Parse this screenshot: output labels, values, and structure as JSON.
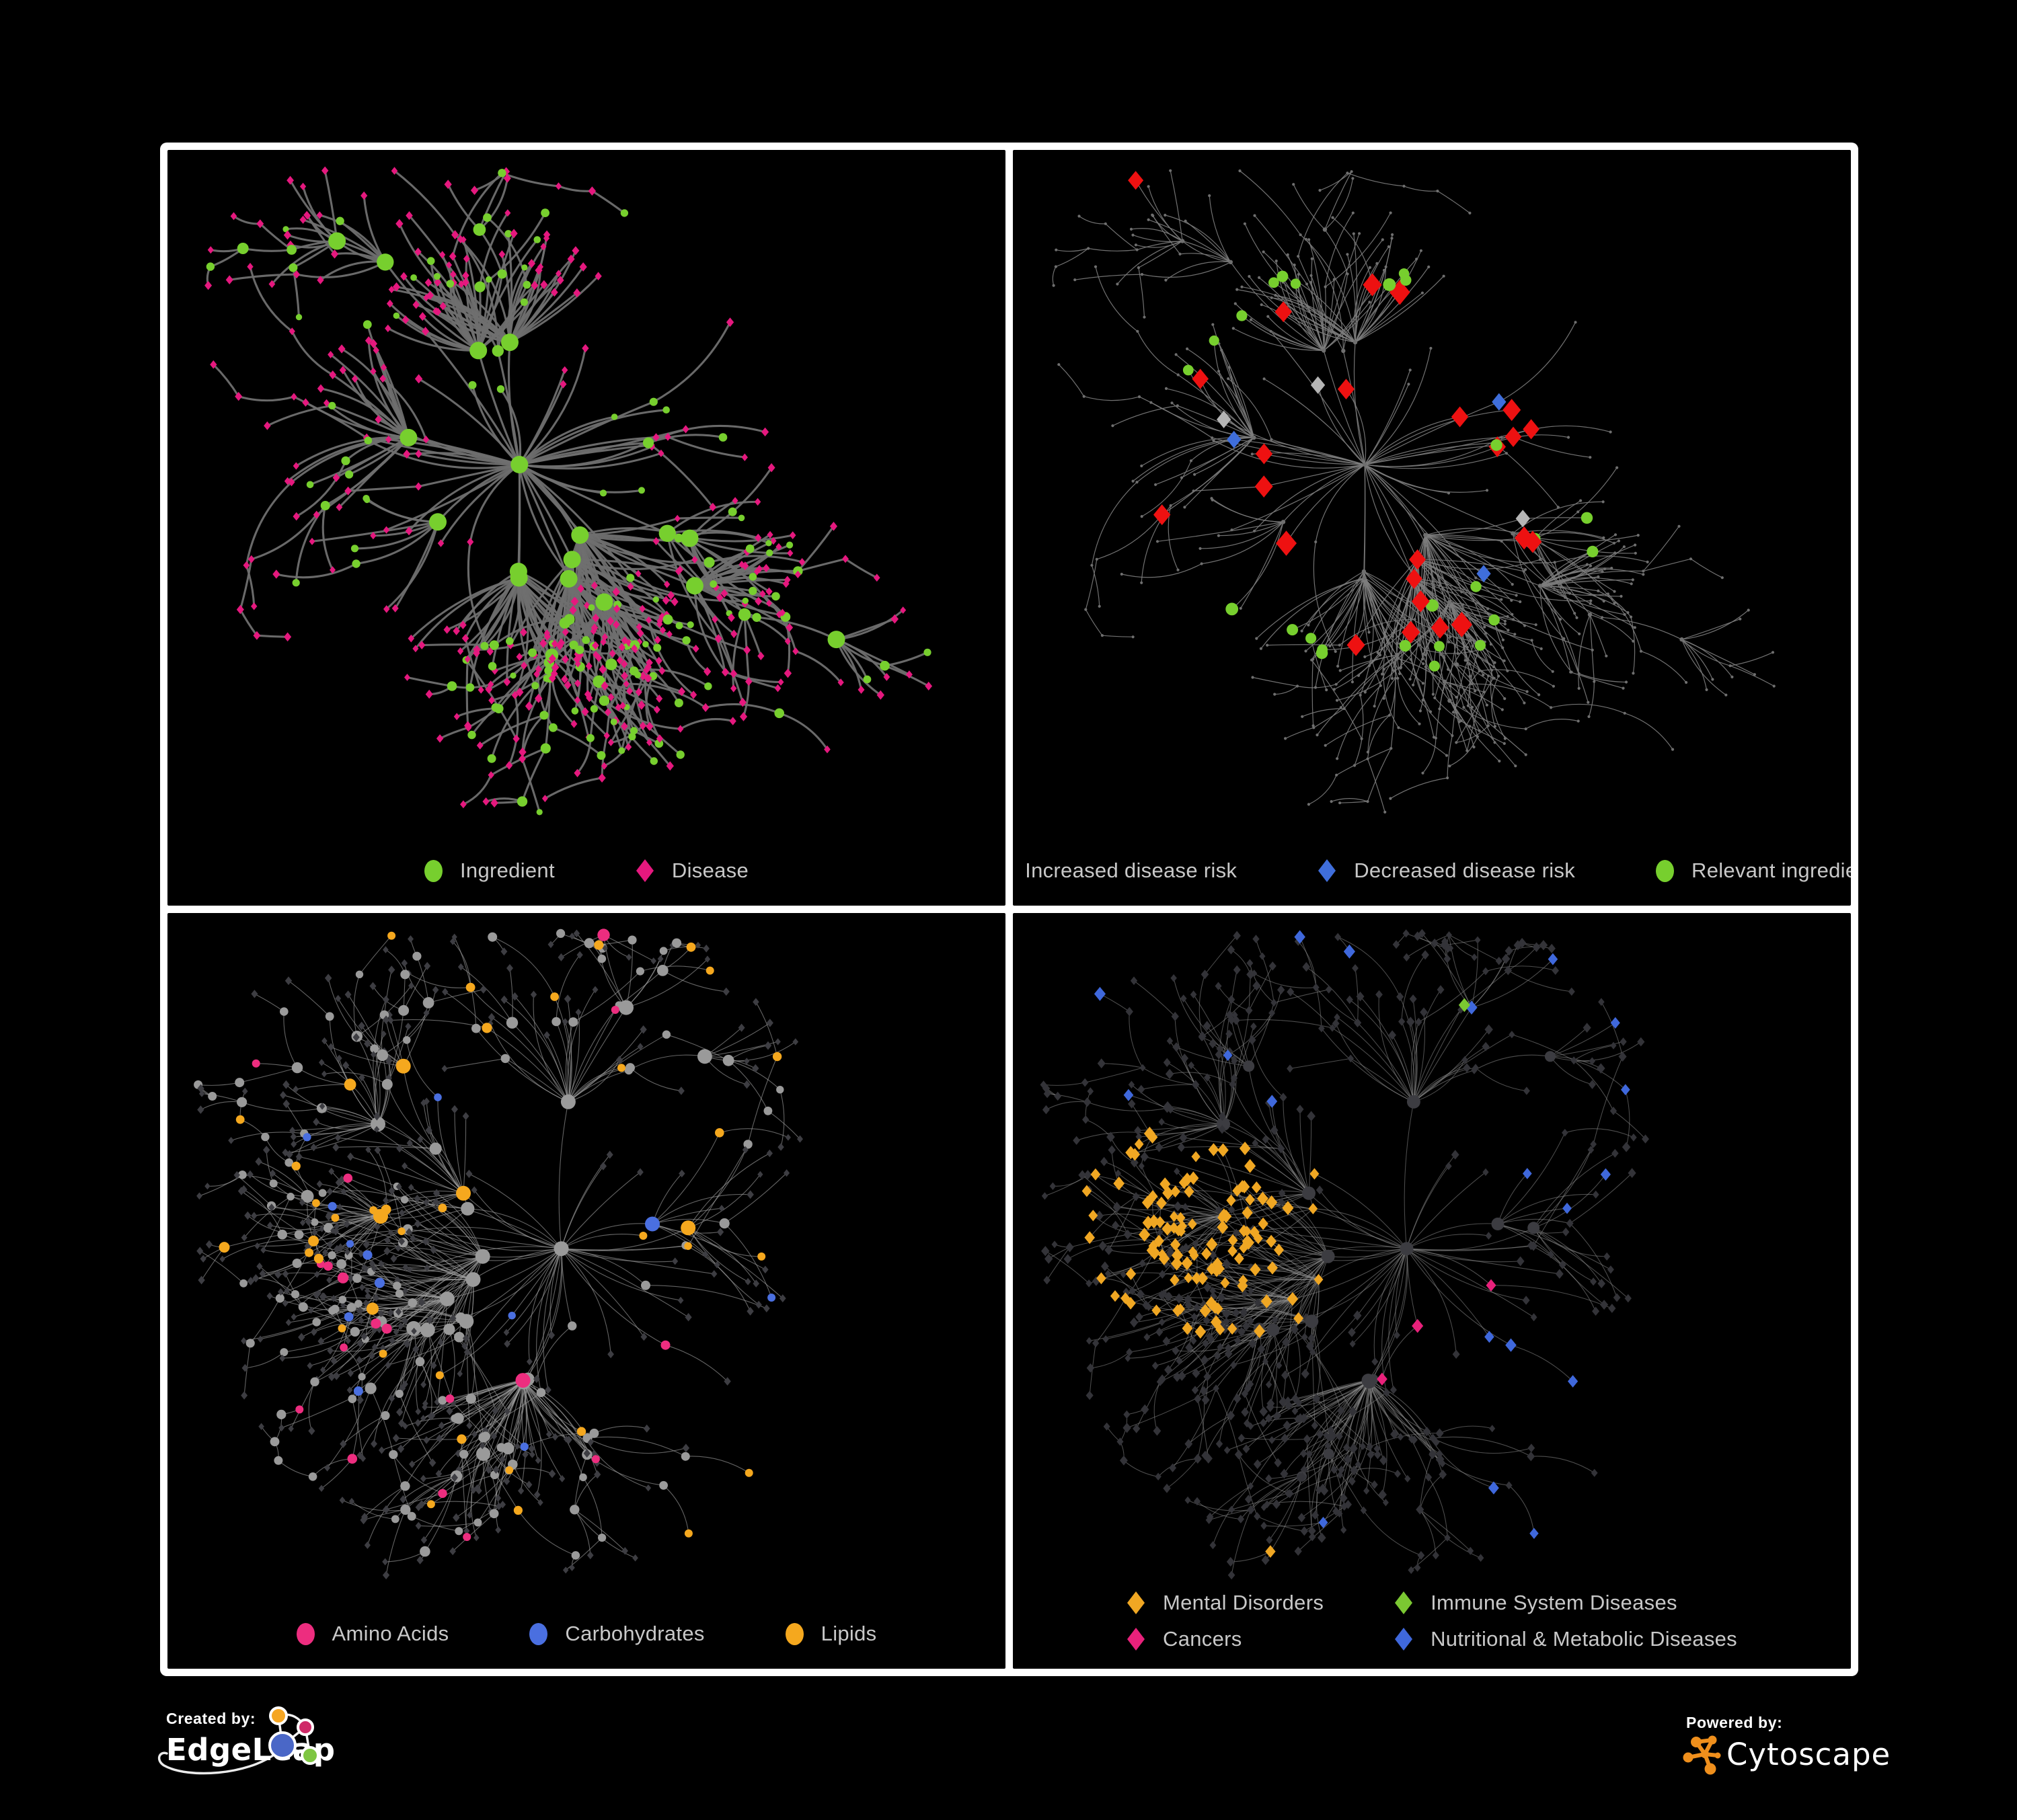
{
  "panels": [
    {
      "id": "ingredient-disease",
      "legend": [
        {
          "label": "Ingredient",
          "shape": "circle",
          "color": "#77cf2e"
        },
        {
          "label": "Disease",
          "shape": "diamond",
          "color": "#e5187e"
        }
      ]
    },
    {
      "id": "disease-risk",
      "legend": [
        {
          "label": "Increased disease risk",
          "shape": "diamond",
          "color": "#ee1111"
        },
        {
          "label": "Decreased disease risk",
          "shape": "diamond",
          "color": "#3f6edb"
        },
        {
          "label": "Relevant ingredient",
          "shape": "circle",
          "color": "#77cf2e"
        }
      ]
    },
    {
      "id": "ingredient-classes",
      "legend": [
        {
          "label": "Amino Acids",
          "shape": "circle",
          "color": "#ed2d7f"
        },
        {
          "label": "Carbohydrates",
          "shape": "circle",
          "color": "#4a6fe0"
        },
        {
          "label": "Lipids",
          "shape": "circle",
          "color": "#f5a81e"
        }
      ]
    },
    {
      "id": "disease-classes",
      "legend": [
        {
          "label": "Mental Disorders",
          "shape": "diamond",
          "color": "#f0a723"
        },
        {
          "label": "Immune System Diseases",
          "shape": "diamond",
          "color": "#7bc832"
        },
        {
          "label": "Cancers",
          "shape": "diamond",
          "color": "#e8217b"
        },
        {
          "label": "Nutritional & Metabolic Diseases",
          "shape": "diamond",
          "color": "#3f68dc"
        }
      ]
    }
  ],
  "network_style": {
    "panel1": {
      "edge": "#6f6f6f",
      "green": "#77cf2e",
      "pink": "#e5187e"
    },
    "panel2": {
      "edge": "#7d7d7d",
      "red": "#ee1111",
      "blue": "#3f6edb",
      "gray": "#b5b5b5",
      "green": "#77cf2e",
      "dot": "#6f6f6f"
    },
    "panel3": {
      "edge": "#a0a0a0",
      "gray": "#9a9a9a",
      "dark": "#3d3d42",
      "yellow": "#f5a81e",
      "pink": "#ed2d7f",
      "blue": "#4a6fe0"
    },
    "panel4": {
      "edge": "#8d8d8d",
      "dark": "#333338",
      "dark2": "#3c3c41",
      "yellow": "#f0a723",
      "green": "#7bc832",
      "pink": "#e8217b",
      "blue": "#3f68dc"
    }
  },
  "footer": {
    "created_by": {
      "label": "Created by:",
      "brand": "EdgeLeap"
    },
    "powered_by": {
      "label": "Powered by:",
      "brand": "Cytoscape",
      "accent": "#ef8f1c"
    }
  },
  "legend_text_color": "#c8c8c8",
  "frame_color": "#ffffff",
  "background_color": "#000000"
}
